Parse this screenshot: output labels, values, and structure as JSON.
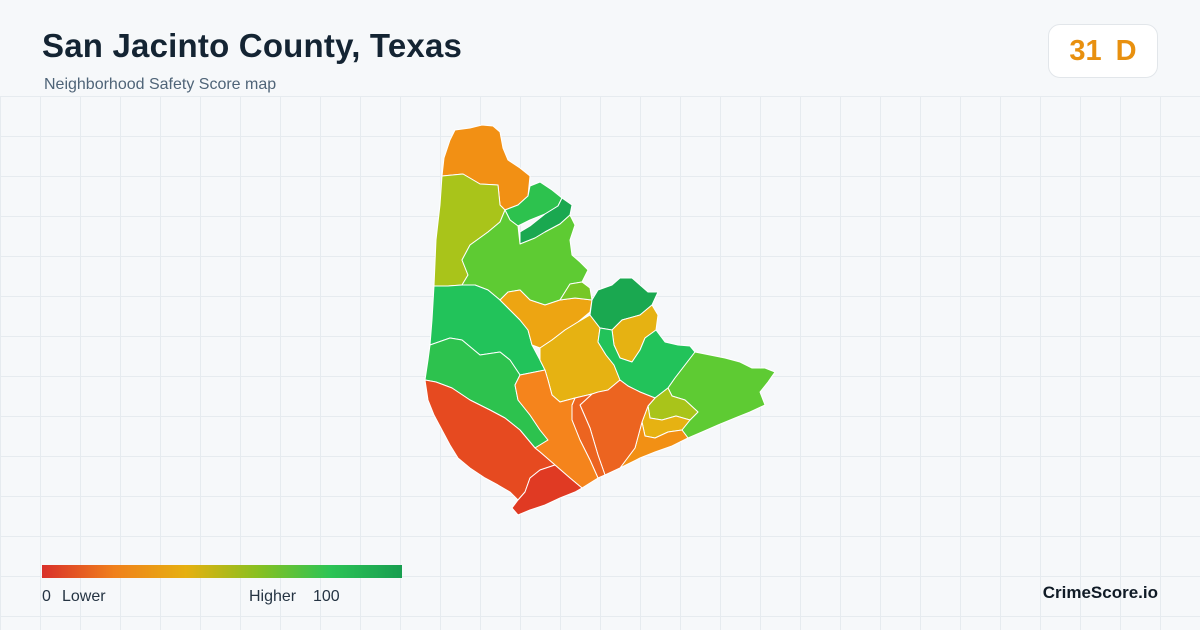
{
  "header": {
    "title": "San Jacinto County, Texas",
    "subtitle": "Neighborhood Safety Score map"
  },
  "score_badge": {
    "score": "31",
    "grade": "D",
    "color": "#e8900f"
  },
  "legend": {
    "min_value": "0",
    "min_label": "Lower",
    "max_label": "Higher",
    "max_value": "100",
    "colors": [
      "#d9302a",
      "#f0801c",
      "#e6b010",
      "#88c020",
      "#2cc455",
      "#189e50"
    ]
  },
  "brand": "CrimeScore.io",
  "map": {
    "region_colors": {
      "red": "#e64a20",
      "red_dark": "#e03a23",
      "orange_red": "#ec6420",
      "orange": "#f5841c",
      "orange_light": "#f29014",
      "amber": "#eda512",
      "gold": "#e6b212",
      "olive": "#a9c41a",
      "lime": "#76c726",
      "green_light": "#5ecb33",
      "green": "#22c35a",
      "green_mid": "#2dc24e",
      "green_dark": "#1aa850"
    }
  }
}
